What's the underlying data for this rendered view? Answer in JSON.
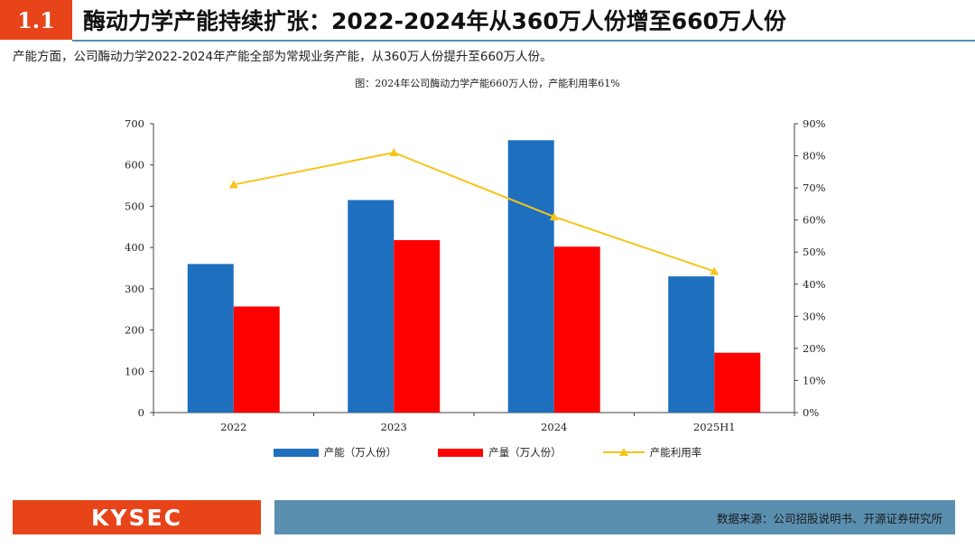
{
  "header": {
    "section_number": "1.1",
    "title": "酶动力学产能持续扩张：2022-2024年从360万人份增至660万人份"
  },
  "subtitle": "产能方面，公司酶动力学2022-2024年产能全部为常规业务产能，从360万人份提升至660万人份。",
  "chart_title": "图：2024年公司酶动力学产能660万人份，产能利用率61%",
  "chart_data": {
    "type": "bar",
    "categories": [
      "2022",
      "2023",
      "2024",
      "2025H1"
    ],
    "series": [
      {
        "name": "产能（万人份）",
        "kind": "bar",
        "axis": "left",
        "color": "#1f6fbf",
        "values": [
          360,
          515,
          660,
          330
        ]
      },
      {
        "name": "产量（万人份）",
        "kind": "bar",
        "axis": "left",
        "color": "#ff0000",
        "values": [
          257,
          418,
          402,
          145
        ]
      },
      {
        "name": "产能利用率",
        "kind": "line",
        "axis": "right",
        "color": "#f5c518",
        "values": [
          71,
          81,
          61,
          44
        ]
      }
    ],
    "ylim": [
      0,
      700
    ],
    "yticks": [
      "0",
      "100",
      "200",
      "300",
      "400",
      "500",
      "600",
      "700"
    ],
    "y2lim": [
      0,
      90
    ],
    "y2ticks": [
      "0%",
      "10%",
      "20%",
      "30%",
      "40%",
      "50%",
      "60%",
      "70%",
      "80%",
      "90%"
    ],
    "grid": false,
    "legend_position": "bottom"
  },
  "footer": {
    "logo": "KYSEC",
    "source": "数据来源：公司招股说明书、开源证券研究所"
  }
}
